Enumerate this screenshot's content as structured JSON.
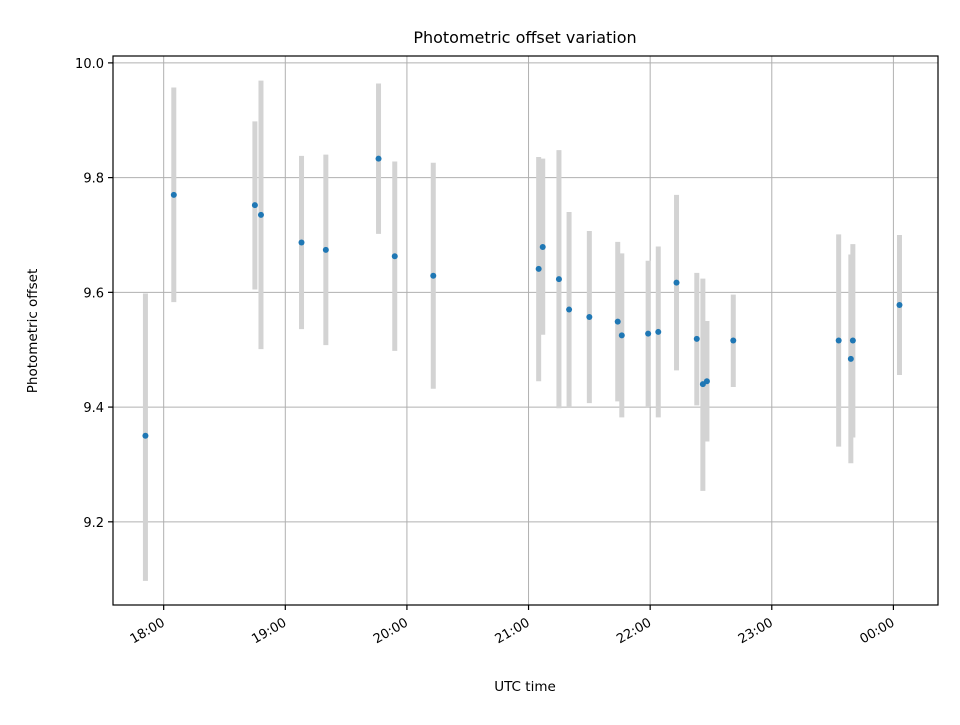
{
  "chart_data": {
    "type": "scatter",
    "title": "Photometric offset variation",
    "xlabel": "UTC time",
    "ylabel": "Photometric offset",
    "x_axis_type": "time",
    "x_ticks": [
      "18:00",
      "19:00",
      "20:00",
      "21:00",
      "22:00",
      "23:00",
      "00:00"
    ],
    "y_ticks": [
      "9.2",
      "9.4",
      "9.6",
      "9.8",
      "10.0"
    ],
    "ylim": [
      9.055,
      10.012
    ],
    "xlim": [
      "17:35",
      "00:22"
    ],
    "grid": true,
    "error_bars": true,
    "colors": {
      "marker": "#1f77b4",
      "error_bar": "#d3d3d3",
      "grid": "#b0b0b0"
    },
    "points": [
      {
        "t": "17:51",
        "y": 9.35,
        "lo": 9.097,
        "hi": 9.598
      },
      {
        "t": "18:05",
        "y": 9.77,
        "lo": 9.583,
        "hi": 9.957
      },
      {
        "t": "18:45",
        "y": 9.752,
        "lo": 9.605,
        "hi": 9.898
      },
      {
        "t": "18:48",
        "y": 9.735,
        "lo": 9.501,
        "hi": 9.969
      },
      {
        "t": "19:08",
        "y": 9.687,
        "lo": 9.536,
        "hi": 9.838
      },
      {
        "t": "19:20",
        "y": 9.674,
        "lo": 9.508,
        "hi": 9.84
      },
      {
        "t": "19:46",
        "y": 9.833,
        "lo": 9.702,
        "hi": 9.964
      },
      {
        "t": "19:54",
        "y": 9.663,
        "lo": 9.498,
        "hi": 9.828
      },
      {
        "t": "20:13",
        "y": 9.629,
        "lo": 9.432,
        "hi": 9.826
      },
      {
        "t": "21:05",
        "y": 9.641,
        "lo": 9.445,
        "hi": 9.836
      },
      {
        "t": "21:07",
        "y": 9.679,
        "lo": 9.526,
        "hi": 9.833
      },
      {
        "t": "21:15",
        "y": 9.623,
        "lo": 9.398,
        "hi": 9.848
      },
      {
        "t": "21:20",
        "y": 9.57,
        "lo": 9.4,
        "hi": 9.74
      },
      {
        "t": "21:30",
        "y": 9.557,
        "lo": 9.407,
        "hi": 9.707
      },
      {
        "t": "21:44",
        "y": 9.549,
        "lo": 9.41,
        "hi": 9.688
      },
      {
        "t": "21:46",
        "y": 9.525,
        "lo": 9.382,
        "hi": 9.668
      },
      {
        "t": "21:59",
        "y": 9.528,
        "lo": 9.4,
        "hi": 9.655
      },
      {
        "t": "22:04",
        "y": 9.531,
        "lo": 9.382,
        "hi": 9.68
      },
      {
        "t": "22:13",
        "y": 9.617,
        "lo": 9.464,
        "hi": 9.77
      },
      {
        "t": "22:23",
        "y": 9.519,
        "lo": 9.403,
        "hi": 9.634
      },
      {
        "t": "22:26",
        "y": 9.44,
        "lo": 9.254,
        "hi": 9.624
      },
      {
        "t": "22:28",
        "y": 9.445,
        "lo": 9.34,
        "hi": 9.55
      },
      {
        "t": "22:41",
        "y": 9.516,
        "lo": 9.435,
        "hi": 9.596
      },
      {
        "t": "23:33",
        "y": 9.516,
        "lo": 9.331,
        "hi": 9.701
      },
      {
        "t": "23:39",
        "y": 9.484,
        "lo": 9.302,
        "hi": 9.666
      },
      {
        "t": "23:40",
        "y": 9.516,
        "lo": 9.347,
        "hi": 9.684
      },
      {
        "t": "00:03",
        "y": 9.578,
        "lo": 9.456,
        "hi": 9.7
      }
    ]
  }
}
